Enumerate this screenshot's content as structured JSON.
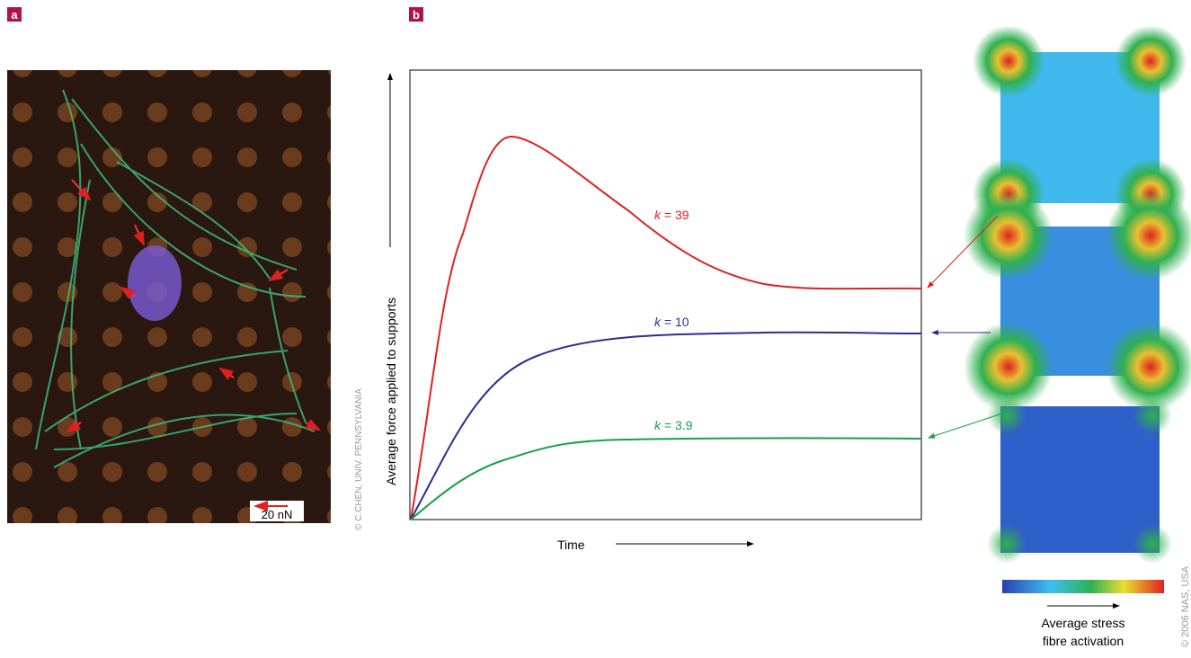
{
  "panel_a": {
    "label": "a",
    "scale_bar": "20 nN",
    "credit": "© C.CHEN, UNIV. PENNSYLVANIA"
  },
  "panel_b": {
    "label": "b",
    "y_label": "Average force applied to supports",
    "x_label": "Time",
    "curves": [
      {
        "variable": "k",
        "text": " = 39"
      },
      {
        "variable": "k",
        "text": " = 10"
      },
      {
        "variable": "k",
        "text": " = 3.9"
      }
    ],
    "colorbar_label": [
      "Average stress",
      "fibre activation"
    ],
    "credit": "© 2006 NAS, USA"
  }
}
